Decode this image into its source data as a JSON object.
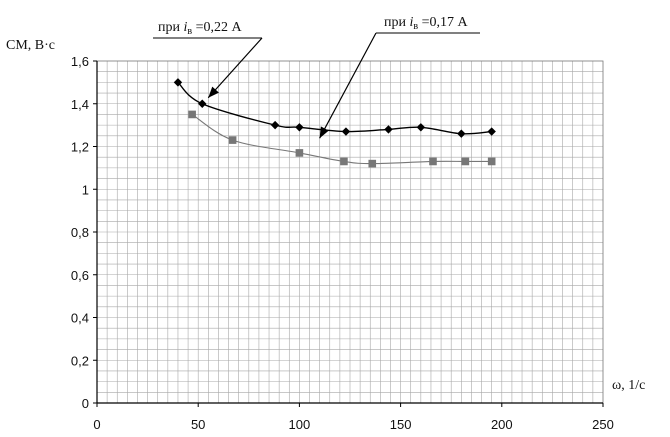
{
  "chart_data": {
    "type": "line",
    "title": "",
    "xlabel": "ω, 1/c",
    "ylabel": "CМ, В·с",
    "xlim": [
      0,
      250
    ],
    "ylim": [
      0,
      1.6
    ],
    "x_ticks": [
      "0",
      "50",
      "100",
      "150",
      "200",
      "250"
    ],
    "y_ticks": [
      "0",
      "0,2",
      "0,4",
      "0,6",
      "0,8",
      "1",
      "1,2",
      "1,4",
      "1,6"
    ],
    "grid": true,
    "series": [
      {
        "name": "при iв =0,22 А",
        "marker": "diamond",
        "color": "#000000",
        "x": [
          40,
          52,
          88,
          100,
          123,
          144,
          160,
          180,
          195
        ],
        "y": [
          1.5,
          1.4,
          1.3,
          1.29,
          1.27,
          1.28,
          1.29,
          1.26,
          1.27
        ]
      },
      {
        "name": "при iв =0,17 А",
        "marker": "square",
        "color": "#777777",
        "x": [
          47,
          67,
          100,
          122,
          136,
          166,
          182,
          195
        ],
        "y": [
          1.35,
          1.23,
          1.17,
          1.13,
          1.12,
          1.13,
          1.13,
          1.13
        ]
      }
    ],
    "annotations": [
      {
        "prefix": "при ",
        "var": "i",
        "sub": "в",
        "value": "=0,22 А",
        "series": 0,
        "target_x": 52,
        "target_y": 1.4
      },
      {
        "prefix": "при ",
        "var": "i",
        "sub": "в",
        "value": "=0,17 А",
        "series": 1,
        "target_x": 108,
        "target_y": 1.22
      }
    ]
  }
}
